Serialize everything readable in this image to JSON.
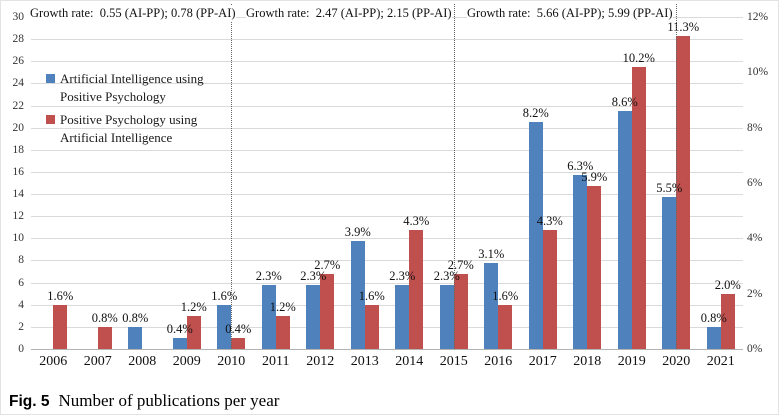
{
  "figure": {
    "caption_label": "Fig. 5",
    "caption_text": "Number of publications per year"
  },
  "chart_data": {
    "type": "bar",
    "title": "",
    "xlabel": "",
    "ylabel_left": "",
    "ylabel_right": "",
    "categories": [
      "2006",
      "2007",
      "2008",
      "2009",
      "2010",
      "2011",
      "2012",
      "2013",
      "2014",
      "2015",
      "2016",
      "2017",
      "2018",
      "2019",
      "2020",
      "2021"
    ],
    "series": [
      {
        "name": "Artificial Intelligence using Positive Psychology",
        "short_name": "AI-PP",
        "color": "#4f81bd",
        "values_pct": [
          0,
          0,
          0.8,
          0.4,
          1.6,
          2.3,
          2.3,
          3.9,
          2.3,
          2.3,
          3.1,
          8.2,
          6.3,
          8.6,
          5.5,
          0.8
        ],
        "values_count": [
          0,
          0,
          2,
          1,
          4,
          6,
          6,
          10,
          6,
          6,
          8,
          21,
          16,
          22,
          14,
          2
        ]
      },
      {
        "name": "Positive Psychology using Artificial Intelligence",
        "short_name": "PP-AI",
        "color": "#c0504d",
        "values_pct": [
          1.6,
          0.8,
          0,
          1.2,
          0.4,
          1.2,
          2.7,
          1.6,
          4.3,
          2.7,
          1.6,
          4.3,
          5.9,
          10.2,
          11.3,
          2.0
        ],
        "values_count": [
          4,
          2,
          0,
          3,
          1,
          3,
          7,
          4,
          11,
          7,
          4,
          11,
          15,
          26,
          29,
          5
        ]
      }
    ],
    "left_axis": {
      "min": 0,
      "max": 30,
      "step": 2,
      "suffix": ""
    },
    "right_axis": {
      "min": 0,
      "max": 12,
      "step": 2,
      "suffix": "%"
    },
    "growth_annotations": [
      "Growth rate:  0.55 (AI-PP); 0.78 (PP-AI)",
      "Growth rate:  2.47 (AI-PP); 2.15 (PP-AI)",
      "Growth rate:  5.66 (AI-PP); 5.99 (PP-AI)"
    ],
    "separator_years": [
      "2010",
      "2015",
      "2020"
    ],
    "legend_position": "top-left-inside",
    "grid": true
  }
}
